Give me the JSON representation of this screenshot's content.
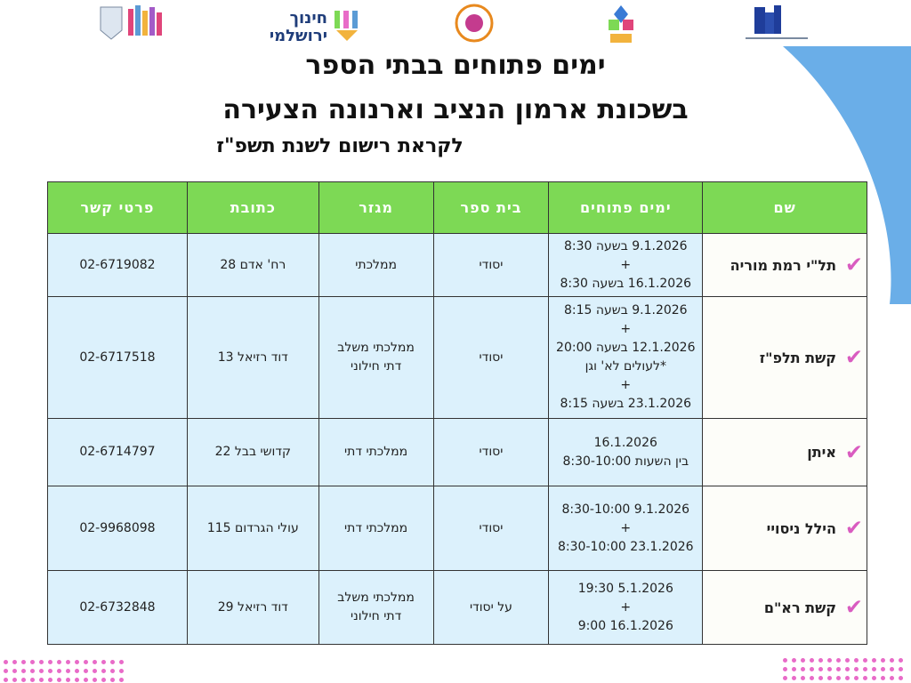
{
  "header": {
    "title_line1": "ימים פתוחים בבתי הספר",
    "title_line2": "בשכונת ארמון הנציב וארנונה הצעירה",
    "subtitle": "לקראת רישום לשנת תשפ\"ז"
  },
  "logos": [
    "jerusalem-municipality-logo",
    "manhi-jerusalem-education-logo",
    "education-badge-logo",
    "shchuna-tseira-logo",
    "community-administration-logo"
  ],
  "colors": {
    "header_green": "#7dd955",
    "banner_blue": "#6aaee8",
    "cell_blue": "#dcf1fc",
    "check_pink": "#d95cc0"
  },
  "table": {
    "columns": [
      "שם",
      "ימים פתוחים",
      "בית ספר",
      "מגזר",
      "כתובת",
      "פרטי קשר"
    ],
    "rows": [
      {
        "name": "תל\"י רמת מוריה",
        "days": [
          "9.1.2026 בשעה 8:30",
          "+",
          "16.1.2026 בשעה 8:30"
        ],
        "school": "יסודי",
        "sector": [
          "ממלכתי"
        ],
        "address": "רח' אדם 28",
        "phone": "02-6719082"
      },
      {
        "name": "קשת תלפ\"ז",
        "days": [
          "9.1.2026 בשעה 8:15",
          "+",
          "12.1.2026 בשעה 20:00",
          "*לעולים לא' וגן",
          "+",
          "23.1.2026 בשעה 8:15"
        ],
        "school": "יסודי",
        "sector": [
          "ממלכתי משלב",
          "דתי חילוני"
        ],
        "address": "דוד רזיאל 13",
        "phone": "02-6717518"
      },
      {
        "name": "איתן",
        "days": [
          "16.1.2026",
          "בין השעות 8:30-10:00"
        ],
        "school": "יסודי",
        "sector": [
          "ממלכתי דתי"
        ],
        "address": "קדושי בבל 22",
        "phone": "02-6714797"
      },
      {
        "name": "הילל ניסויי",
        "days": [
          "9.1.2026 8:30-10:00",
          "+",
          "23.1.2026 8:30-10:00"
        ],
        "school": "יסודי",
        "sector": [
          "ממלכתי דתי"
        ],
        "address": "עולי הגרדום 115",
        "phone": "02-9968098"
      },
      {
        "name": "קשת רא\"ם",
        "days": [
          "5.1.2026 19:30",
          "+",
          "16.1.2026 9:00"
        ],
        "school": "על יסודי",
        "sector": [
          "ממלכתי משלב",
          "דתי חילוני"
        ],
        "address": "דוד רזיאל 29",
        "phone": "02-6732848"
      }
    ]
  }
}
